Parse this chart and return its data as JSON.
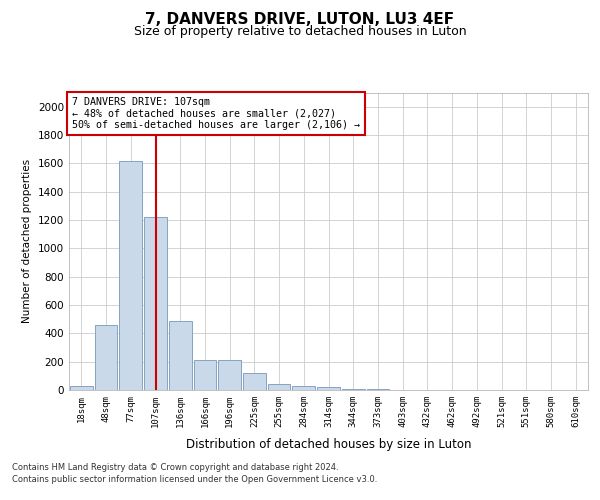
{
  "title1": "7, DANVERS DRIVE, LUTON, LU3 4EF",
  "title2": "Size of property relative to detached houses in Luton",
  "xlabel": "Distribution of detached houses by size in Luton",
  "ylabel": "Number of detached properties",
  "categories": [
    "18sqm",
    "48sqm",
    "77sqm",
    "107sqm",
    "136sqm",
    "166sqm",
    "196sqm",
    "225sqm",
    "255sqm",
    "284sqm",
    "314sqm",
    "344sqm",
    "373sqm",
    "403sqm",
    "432sqm",
    "462sqm",
    "492sqm",
    "521sqm",
    "551sqm",
    "580sqm",
    "610sqm"
  ],
  "values": [
    30,
    460,
    1620,
    1220,
    490,
    210,
    210,
    120,
    40,
    30,
    20,
    10,
    4,
    2,
    1,
    1,
    0,
    0,
    0,
    0,
    0
  ],
  "bar_color": "#c9d9ea",
  "bar_edge_color": "#7799bb",
  "highlight_index": 3,
  "highlight_color": "#cc0000",
  "annotation_line1": "7 DANVERS DRIVE: 107sqm",
  "annotation_line2": "← 48% of detached houses are smaller (2,027)",
  "annotation_line3": "50% of semi-detached houses are larger (2,106) →",
  "annotation_box_color": "#ffffff",
  "annotation_box_edge": "#cc0000",
  "ylim": [
    0,
    2100
  ],
  "yticks": [
    0,
    200,
    400,
    600,
    800,
    1000,
    1200,
    1400,
    1600,
    1800,
    2000
  ],
  "footer1": "Contains HM Land Registry data © Crown copyright and database right 2024.",
  "footer2": "Contains public sector information licensed under the Open Government Licence v3.0.",
  "bg_color": "#ffffff",
  "grid_color": "#cccccc"
}
